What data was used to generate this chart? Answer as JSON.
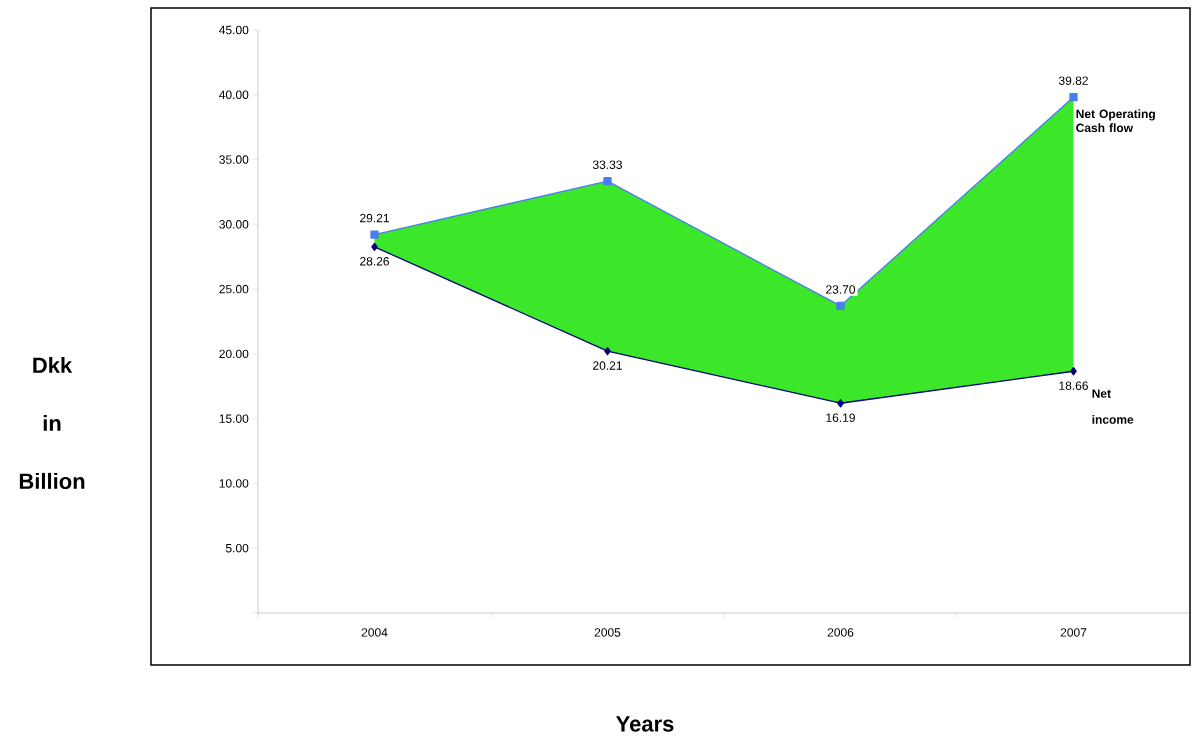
{
  "chart_data": {
    "type": "line",
    "xlabel": "Years",
    "ylabel": "Dkk in Billion",
    "categories": [
      "2004",
      "2005",
      "2006",
      "2007"
    ],
    "series": [
      {
        "name": "Net Operating Cash flow",
        "color": "#4a7ef0",
        "marker": "square",
        "values": [
          29.21,
          33.33,
          23.7,
          39.82
        ],
        "value_labels": [
          "29.21",
          "33.33",
          "23.70",
          "39.82"
        ],
        "lower": [
          28.26,
          20.21,
          16.19,
          18.66
        ],
        "upper": [
          29.21,
          33.33,
          23.7,
          39.82
        ]
      },
      {
        "name": "Net income",
        "color": "#000080",
        "marker": "diamond",
        "values": [
          28.26,
          20.21,
          16.19,
          18.66
        ],
        "value_labels": [
          "28.26",
          "20.21",
          "16.19",
          "18.66"
        ]
      }
    ],
    "ylim": [
      0,
      45
    ],
    "yticks": [
      {
        "value": 0,
        "label": null
      },
      {
        "value": 5,
        "label": "5.00"
      },
      {
        "value": 10,
        "label": "10.00"
      },
      {
        "value": 15,
        "label": "15.00"
      },
      {
        "value": 20,
        "label": "20.00"
      },
      {
        "value": 25,
        "label": "25.00"
      },
      {
        "value": 30,
        "label": "30.00"
      },
      {
        "value": 35,
        "label": "35.00"
      },
      {
        "value": 40,
        "label": "40.00"
      },
      {
        "value": 45,
        "label": "45.00"
      }
    ],
    "grid": false
  }
}
